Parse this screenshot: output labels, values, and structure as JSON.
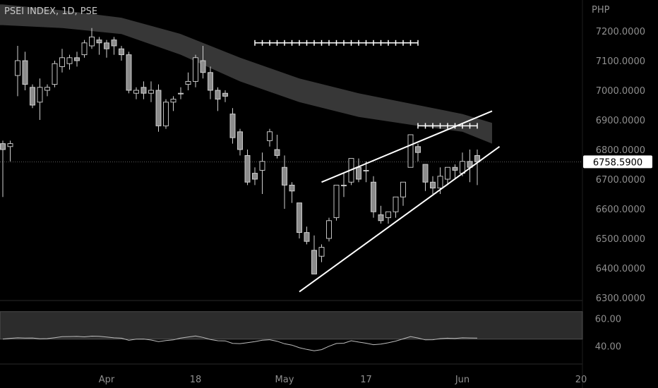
{
  "chart_data": {
    "type": "candlestick",
    "title": "PSEI INDEX, 1D, PSE",
    "price_axis": {
      "unit": "PHP",
      "ylim": [
        6300,
        7250
      ],
      "ticks": [
        "7200.0000",
        "7100.0000",
        "7000.0000",
        "6900.0000",
        "6800.0000",
        "6700.0000",
        "6600.0000",
        "6500.0000",
        "6400.0000",
        "6300.0000"
      ],
      "tick_values": [
        7200,
        7100,
        7000,
        6900,
        6800,
        6700,
        6600,
        6500,
        6400,
        6300
      ]
    },
    "last_price": {
      "value": 6758.59,
      "label": "6758.5900"
    },
    "x_axis": {
      "labels": [
        {
          "label": "Apr",
          "bar": 14
        },
        {
          "label": "18",
          "bar": 26
        },
        {
          "label": "May",
          "bar": 38
        },
        {
          "label": "17",
          "bar": 49
        },
        {
          "label": "Jun",
          "bar": 62
        },
        {
          "label": "20",
          "bar": 78
        }
      ]
    },
    "candles": [
      [
        6820,
        6830,
        6640,
        6800
      ],
      [
        6810,
        6830,
        6760,
        6820
      ],
      [
        7050,
        7150,
        6980,
        7100
      ],
      [
        7100,
        7130,
        7000,
        7020
      ],
      [
        7010,
        7020,
        6940,
        6950
      ],
      [
        6960,
        7040,
        6900,
        7010
      ],
      [
        7000,
        7020,
        6980,
        7010
      ],
      [
        7020,
        7100,
        7010,
        7090
      ],
      [
        7080,
        7140,
        7060,
        7110
      ],
      [
        7090,
        7120,
        7070,
        7110
      ],
      [
        7110,
        7130,
        7080,
        7100
      ],
      [
        7120,
        7170,
        7110,
        7160
      ],
      [
        7150,
        7210,
        7140,
        7180
      ],
      [
        7170,
        7180,
        7120,
        7160
      ],
      [
        7160,
        7170,
        7110,
        7140
      ],
      [
        7170,
        7180,
        7120,
        7150
      ],
      [
        7140,
        7150,
        7100,
        7120
      ],
      [
        7120,
        7130,
        6990,
        7000
      ],
      [
        6990,
        7010,
        6970,
        7000
      ],
      [
        7010,
        7030,
        6970,
        6990
      ],
      [
        6990,
        7030,
        6960,
        7000
      ],
      [
        7000,
        7020,
        6860,
        6880
      ],
      [
        6880,
        6970,
        6870,
        6960
      ],
      [
        6960,
        6980,
        6930,
        6970
      ],
      [
        6990,
        7010,
        6970,
        6990
      ],
      [
        7020,
        7060,
        7000,
        7030
      ],
      [
        7030,
        7120,
        7010,
        7110
      ],
      [
        7100,
        7150,
        7040,
        7060
      ],
      [
        7060,
        7080,
        6970,
        7000
      ],
      [
        7000,
        7010,
        6930,
        6970
      ],
      [
        6990,
        7000,
        6960,
        6980
      ],
      [
        6920,
        6940,
        6820,
        6840
      ],
      [
        6860,
        6870,
        6780,
        6800
      ],
      [
        6780,
        6800,
        6680,
        6690
      ],
      [
        6720,
        6740,
        6680,
        6700
      ],
      [
        6730,
        6790,
        6650,
        6760
      ],
      [
        6830,
        6870,
        6810,
        6860
      ],
      [
        6800,
        6850,
        6770,
        6780
      ],
      [
        6740,
        6780,
        6600,
        6680
      ],
      [
        6680,
        6690,
        6620,
        6660
      ],
      [
        6620,
        6620,
        6500,
        6520
      ],
      [
        6520,
        6540,
        6480,
        6490
      ],
      [
        6460,
        6510,
        6380,
        6380
      ],
      [
        6440,
        6480,
        6420,
        6470
      ],
      [
        6500,
        6570,
        6490,
        6560
      ],
      [
        6570,
        6680,
        6560,
        6680
      ],
      [
        6680,
        6720,
        6640,
        6680
      ],
      [
        6690,
        6770,
        6680,
        6770
      ],
      [
        6740,
        6770,
        6690,
        6700
      ],
      [
        6730,
        6760,
        6690,
        6730
      ],
      [
        6690,
        6710,
        6570,
        6590
      ],
      [
        6580,
        6610,
        6550,
        6560
      ],
      [
        6570,
        6590,
        6550,
        6590
      ],
      [
        6590,
        6640,
        6570,
        6640
      ],
      [
        6640,
        6690,
        6610,
        6690
      ],
      [
        6740,
        6850,
        6740,
        6850
      ],
      [
        6810,
        6820,
        6760,
        6790
      ],
      [
        6750,
        6750,
        6660,
        6690
      ],
      [
        6690,
        6710,
        6650,
        6670
      ],
      [
        6670,
        6740,
        6650,
        6710
      ],
      [
        6700,
        6740,
        6680,
        6740
      ],
      [
        6740,
        6750,
        6700,
        6730
      ],
      [
        6720,
        6790,
        6710,
        6760
      ],
      [
        6760,
        6800,
        6690,
        6740
      ],
      [
        6780,
        6800,
        6680,
        6758.59
      ]
    ],
    "ma_band_anchors": [
      [
        0,
        7290,
        7220
      ],
      [
        8,
        7270,
        7210
      ],
      [
        16,
        7245,
        7190
      ],
      [
        24,
        7190,
        7120
      ],
      [
        32,
        7110,
        7030
      ],
      [
        40,
        7040,
        6960
      ],
      [
        48,
        6990,
        6910
      ],
      [
        56,
        6950,
        6880
      ],
      [
        62,
        6920,
        6860
      ],
      [
        66,
        6890,
        6820
      ]
    ],
    "annotations": [
      {
        "type": "line",
        "from": [
          40,
          6320
        ],
        "to": [
          67,
          6810
        ]
      },
      {
        "type": "line",
        "from": [
          43,
          6690
        ],
        "to": [
          66,
          6930
        ]
      },
      {
        "type": "cross_row",
        "from": 34,
        "to": 56,
        "value": 7160
      },
      {
        "type": "cross_row",
        "from": 56,
        "to": 64,
        "value": 6880
      }
    ],
    "oscillator": {
      "ticks": [
        "60.00",
        "40.00"
      ],
      "tick_values": [
        60,
        40
      ],
      "ylim": [
        28,
        70
      ],
      "band": [
        45,
        65
      ],
      "values": [
        45.1,
        45.6,
        46.0,
        45.8,
        45.9,
        45.3,
        45.4,
        46.1,
        46.8,
        46.9,
        47.0,
        46.7,
        47.2,
        47.1,
        46.6,
        46.0,
        45.7,
        44.2,
        45.0,
        45.1,
        44.4,
        43.2,
        44.0,
        44.5,
        45.8,
        46.6,
        47.3,
        46.3,
        44.8,
        43.9,
        43.8,
        42.0,
        41.8,
        42.5,
        43.2,
        44.3,
        44.6,
        43.5,
        41.7,
        40.7,
        38.8,
        37.6,
        36.6,
        37.4,
        39.9,
        41.9,
        42.1,
        43.9,
        42.9,
        42.1,
        41.0,
        41.4,
        42.4,
        43.6,
        45.2,
        46.9,
        45.9,
        44.5,
        44.6,
        45.4,
        45.7,
        45.5,
        46.0,
        45.9,
        45.8
      ]
    }
  }
}
